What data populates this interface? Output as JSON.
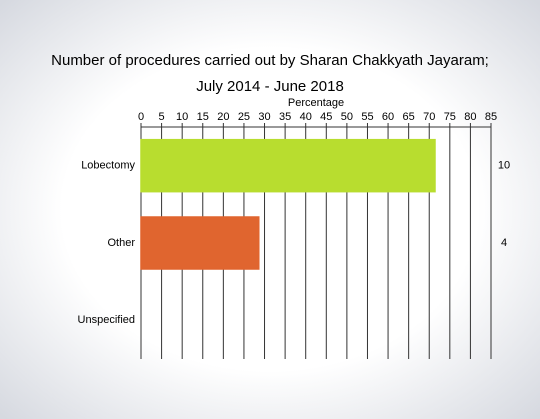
{
  "chart_data": {
    "type": "bar",
    "orientation": "horizontal",
    "title": [
      "Number of procedures carried out by Sharan Chakkyath Jayaram;",
      "July 2014 - June 2018"
    ],
    "x_label": "Percentage",
    "categories": [
      "Lobectomy",
      "Other",
      "Unspecified"
    ],
    "values": [
      71.4,
      28.6,
      0
    ],
    "colors": [
      "#b8dd2f",
      "#e0652f",
      "#b8dd2f"
    ],
    "counts": [
      10,
      4,
      null
    ],
    "xlim": [
      0,
      85
    ],
    "xticks": [
      0,
      5,
      10,
      15,
      20,
      25,
      30,
      35,
      40,
      45,
      50,
      55,
      60,
      65,
      70,
      75,
      80,
      85
    ],
    "grid": true
  }
}
